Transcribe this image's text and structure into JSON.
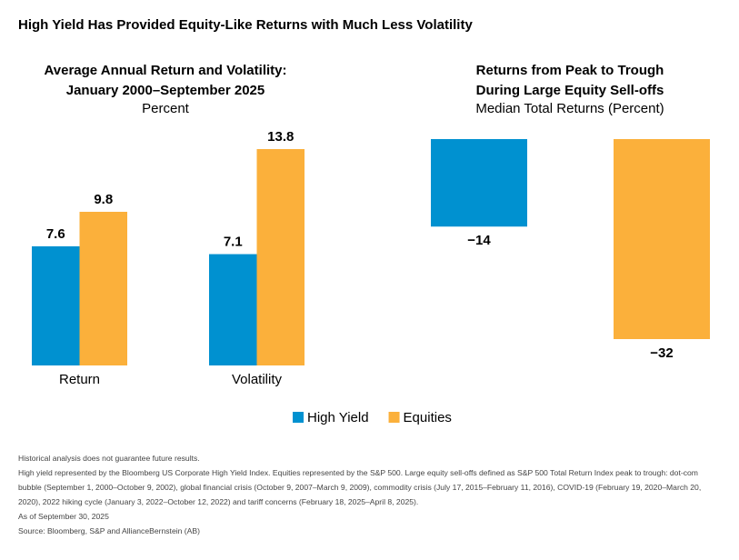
{
  "title": "High Yield Has Provided Equity-Like Returns with Much Less Volatility",
  "chart_data": [
    {
      "type": "bar",
      "title": [
        "Average Annual Return and Volatility:",
        "January 2000–September 2025"
      ],
      "subtitle": "Percent",
      "categories": [
        "Return",
        "Volatility"
      ],
      "series": [
        {
          "name": "High Yield",
          "color": "#0091d0",
          "values": [
            7.6,
            7.1
          ]
        },
        {
          "name": "Equities",
          "color": "#fbb03b",
          "values": [
            9.8,
            13.8
          ]
        }
      ]
    },
    {
      "type": "bar",
      "title": [
        "Returns from Peak to Trough",
        "During Large Equity Sell-offs"
      ],
      "subtitle": "Median Total Returns (Percent)",
      "values": [
        -14,
        -32
      ],
      "value_labels": [
        "−14",
        "−32"
      ],
      "colors": [
        "#0091d0",
        "#fbb03b"
      ]
    }
  ],
  "footnotes": [
    "Historical analysis does not guarantee future results.",
    "High yield represented by the Bloomberg US Corporate High Yield Index. Equities represented by the S&P 500. Large equity sell-offs defined as S&P 500 Total Return Index peak to trough: dot-com bubble (September 1, 2000–October 9, 2002), global financial crisis (October 9, 2007–March 9, 2009), commodity crisis (July 17, 2015–February 11, 2016), COVID-19 (February 19, 2020–March 20, 2020), 2022 hiking cycle (January 3, 2022–October 12, 2022) and tariff concerns (February 18, 2025–April 8, 2025).",
    "As of September 30, 2025",
    "Source: Bloomberg, S&P and AllianceBernstein (AB)"
  ]
}
